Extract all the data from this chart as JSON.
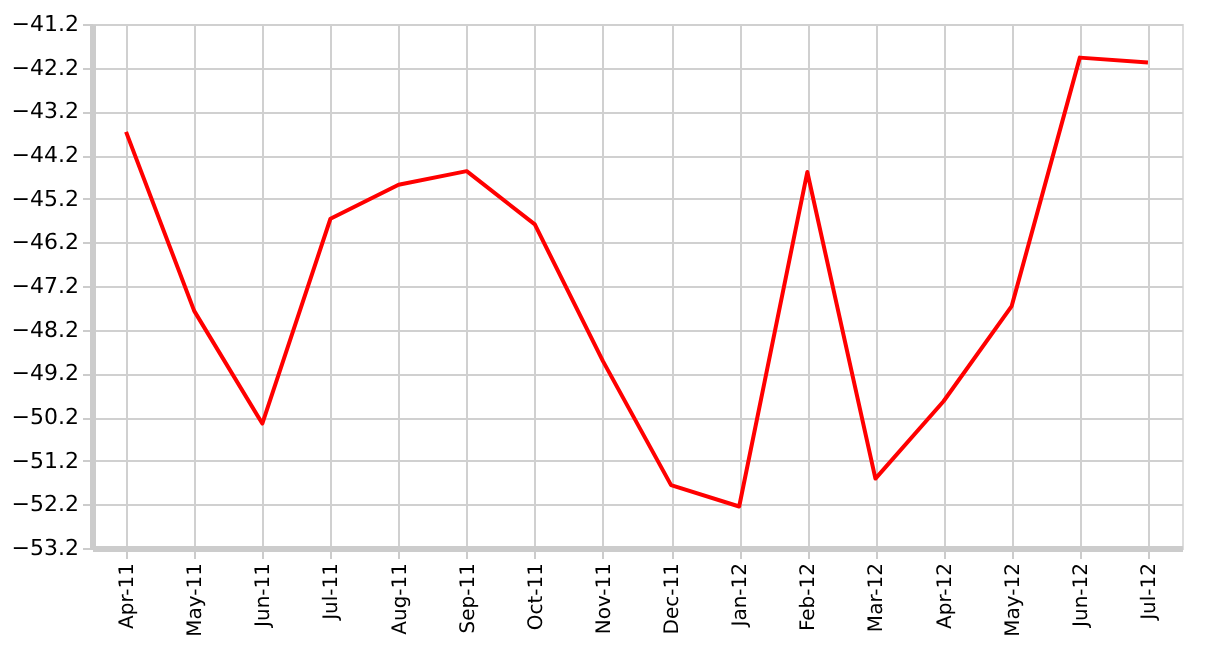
{
  "chart_data": {
    "type": "line",
    "categories": [
      "Apr-11",
      "May-11",
      "Jun-11",
      "Jul-11",
      "Aug-11",
      "Sep-11",
      "Oct-11",
      "Nov-11",
      "Dec-11",
      "Jan-12",
      "Feb-12",
      "Mar-12",
      "Apr-12",
      "May-12",
      "Jun-12",
      "Jul-12"
    ],
    "series": [
      {
        "color": "#ff0000",
        "values": [
          -43.67,
          -47.77,
          -50.35,
          -45.66,
          -44.88,
          -44.57,
          -45.79,
          -48.92,
          -51.76,
          -52.25,
          -44.59,
          -51.61,
          -49.84,
          -47.66,
          -41.97,
          -42.08
        ]
      }
    ],
    "ylim": [
      -53.2,
      -41.2
    ],
    "yticks": [
      -53.2,
      -52.2,
      -51.2,
      -50.2,
      -49.2,
      -48.2,
      -47.2,
      -46.2,
      -45.2,
      -44.2,
      -43.2,
      -42.2,
      -41.2
    ],
    "grid": true,
    "marker": "none",
    "line_style": "solid"
  }
}
